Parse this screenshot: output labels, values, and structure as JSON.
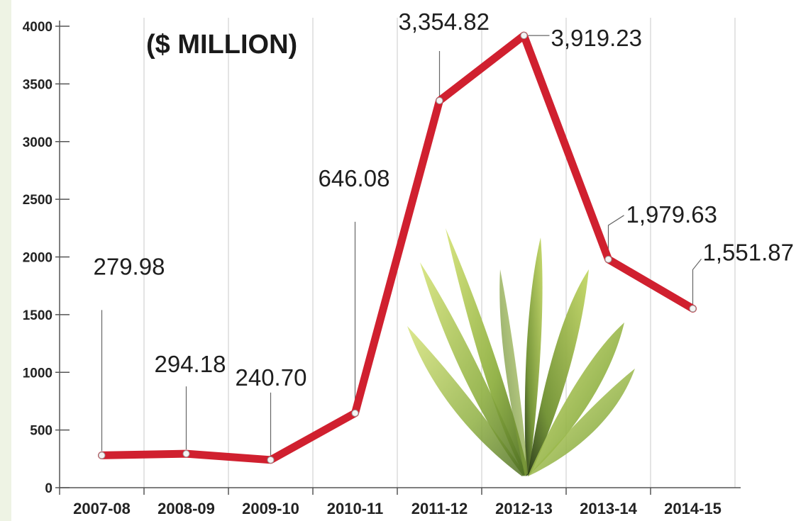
{
  "chart_data": {
    "type": "line",
    "title": "($ MILLION)",
    "categories": [
      "2007-08",
      "2008-09",
      "2009-10",
      "2010-11",
      "2011-12",
      "2012-13",
      "2013-14",
      "2014-15"
    ],
    "values": [
      279.98,
      294.18,
      240.7,
      646.08,
      3354.82,
      3919.23,
      1979.63,
      1551.87
    ],
    "data_labels": [
      "279.98",
      "294.18",
      "240.70",
      "646.08",
      "3,354.82",
      "3,919.23",
      "1,979.63",
      "1,551.87"
    ],
    "yticks": [
      0,
      500,
      1000,
      1500,
      2000,
      2500,
      3000,
      3500,
      4000
    ],
    "ylim": [
      0,
      4000
    ],
    "line_color": "#d0202f",
    "grid": "vertical",
    "legend": "none",
    "decoration": "plant-illustration"
  }
}
